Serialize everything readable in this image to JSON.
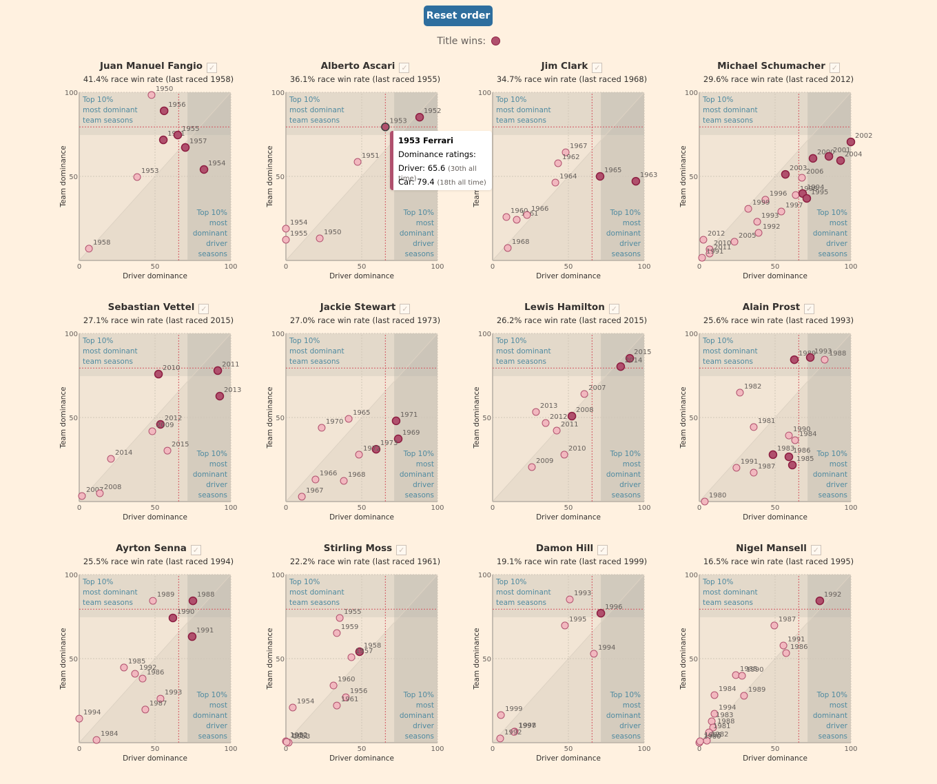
{
  "toolbar": {
    "reset_label": "Reset order"
  },
  "legend": {
    "title_wins_label": "Title wins:",
    "title_win_color": "#b0506d",
    "normal_color": "#f2b8bf"
  },
  "annotations": {
    "team_zone": [
      "Top 10%",
      "most dominant",
      "team seasons"
    ],
    "driver_zone": [
      "Top 10%",
      "most",
      "dominant",
      "driver",
      "seasons"
    ],
    "xlabel": "Driver dominance",
    "ylabel": "Team dominance",
    "ticks": [
      "0",
      "50",
      "100"
    ]
  },
  "tooltip": {
    "title": "1953 Ferrari",
    "subtitle": "Dominance ratings:",
    "driver_label": "Driver: 65.6",
    "driver_rank": "(30th all time)",
    "car_label": "Car: 79.4",
    "car_rank": "(18th all time)"
  },
  "chart_data": [
    {
      "type": "scatter",
      "title": "Juan Manuel Fangio",
      "subtitle": "41.4% race win rate (last raced 1958)",
      "xlabel": "Driver dominance",
      "ylabel": "Team dominance",
      "xlim": [
        0,
        100
      ],
      "ylim": [
        0,
        100
      ],
      "points": [
        {
          "year": "1950",
          "x": 47.7,
          "y": 98.4,
          "win": false
        },
        {
          "year": "1956",
          "x": 56,
          "y": 89,
          "win": true
        },
        {
          "year": "1951",
          "x": 55.5,
          "y": 71.7,
          "win": true
        },
        {
          "year": "1955",
          "x": 65,
          "y": 74.6,
          "win": true
        },
        {
          "year": "1957",
          "x": 70,
          "y": 67.2,
          "win": true
        },
        {
          "year": "1954",
          "x": 82.3,
          "y": 54.1,
          "win": true
        },
        {
          "year": "1953",
          "x": 38.2,
          "y": 49.6,
          "win": false
        },
        {
          "year": "1958",
          "x": 6.4,
          "y": 7,
          "win": false
        }
      ]
    },
    {
      "type": "scatter",
      "title": "Alberto Ascari",
      "subtitle": "36.1% race win rate (last raced 1955)",
      "xlabel": "Driver dominance",
      "ylabel": "Team dominance",
      "xlim": [
        0,
        100
      ],
      "ylim": [
        0,
        100
      ],
      "points": [
        {
          "year": "1952",
          "x": 88.2,
          "y": 85.2,
          "win": true
        },
        {
          "year": "1953",
          "x": 65.6,
          "y": 79.4,
          "win": true,
          "hover": true
        },
        {
          "year": "1951",
          "x": 47.3,
          "y": 58.6,
          "win": false
        },
        {
          "year": "1954",
          "x": 0,
          "y": 18.9,
          "win": false
        },
        {
          "year": "1955",
          "x": 0,
          "y": 12.3,
          "win": false
        },
        {
          "year": "1950",
          "x": 22.3,
          "y": 13.1,
          "win": false
        }
      ]
    },
    {
      "type": "scatter",
      "title": "Jim Clark",
      "subtitle": "34.7% race win rate (last raced 1968)",
      "xlabel": "Driver dominance",
      "ylabel": "Team dominance",
      "xlim": [
        0,
        100
      ],
      "ylim": [
        0,
        100
      ],
      "points": [
        {
          "year": "1967",
          "x": 48.2,
          "y": 64.3,
          "win": false
        },
        {
          "year": "1962",
          "x": 43.2,
          "y": 57.8,
          "win": false
        },
        {
          "year": "1964",
          "x": 41.4,
          "y": 46.3,
          "win": false
        },
        {
          "year": "1965",
          "x": 70.9,
          "y": 50,
          "win": true
        },
        {
          "year": "1963",
          "x": 94.5,
          "y": 47.1,
          "win": true
        },
        {
          "year": "1960",
          "x": 9.1,
          "y": 25.8,
          "win": false
        },
        {
          "year": "1961",
          "x": 15.9,
          "y": 24.2,
          "win": false
        },
        {
          "year": "1966",
          "x": 22.7,
          "y": 27,
          "win": false
        },
        {
          "year": "1968",
          "x": 10,
          "y": 7.4,
          "win": false
        }
      ]
    },
    {
      "type": "scatter",
      "title": "Michael Schumacher",
      "subtitle": "29.6% race win rate (last raced 2012)",
      "xlabel": "Driver dominance",
      "ylabel": "Team dominance",
      "xlim": [
        0,
        100
      ],
      "ylim": [
        0,
        100
      ],
      "points": [
        {
          "year": "2002",
          "x": 100,
          "y": 70.5,
          "win": true
        },
        {
          "year": "2000",
          "x": 75,
          "y": 60.7,
          "win": true
        },
        {
          "year": "2001",
          "x": 85.5,
          "y": 61.9,
          "win": true
        },
        {
          "year": "2004",
          "x": 93.2,
          "y": 59.4,
          "win": true
        },
        {
          "year": "2003",
          "x": 56.8,
          "y": 51.2,
          "win": true
        },
        {
          "year": "2006",
          "x": 67.7,
          "y": 49.2,
          "win": false
        },
        {
          "year": "1998",
          "x": 63.6,
          "y": 38.9,
          "win": false
        },
        {
          "year": "1994",
          "x": 68.2,
          "y": 39.8,
          "win": true
        },
        {
          "year": "1995",
          "x": 70.9,
          "y": 36.9,
          "win": true
        },
        {
          "year": "1996",
          "x": 43.6,
          "y": 36.1,
          "win": false
        },
        {
          "year": "1999",
          "x": 32.3,
          "y": 30.7,
          "win": false
        },
        {
          "year": "1997",
          "x": 54.1,
          "y": 29.1,
          "win": false
        },
        {
          "year": "1993",
          "x": 38.2,
          "y": 23,
          "win": false
        },
        {
          "year": "1992",
          "x": 39.1,
          "y": 16.4,
          "win": false
        },
        {
          "year": "2005",
          "x": 23.2,
          "y": 11.1,
          "win": false
        },
        {
          "year": "2012",
          "x": 2.7,
          "y": 12.3,
          "win": false
        },
        {
          "year": "2010",
          "x": 6.8,
          "y": 6.6,
          "win": false
        },
        {
          "year": "2011",
          "x": 6.8,
          "y": 4.1,
          "win": false
        },
        {
          "year": "1991",
          "x": 1.8,
          "y": 1.6,
          "win": false
        }
      ]
    },
    {
      "type": "scatter",
      "title": "Sebastian Vettel",
      "subtitle": "27.1% race win rate (last raced 2015)",
      "xlabel": "Driver dominance",
      "ylabel": "Team dominance",
      "xlim": [
        0,
        100
      ],
      "ylim": [
        0,
        100
      ],
      "points": [
        {
          "year": "2010",
          "x": 52.3,
          "y": 75.8,
          "win": true
        },
        {
          "year": "2011",
          "x": 91.4,
          "y": 77.9,
          "win": true
        },
        {
          "year": "2013",
          "x": 92.7,
          "y": 62.7,
          "win": true
        },
        {
          "year": "2012",
          "x": 53.6,
          "y": 45.9,
          "win": true
        },
        {
          "year": "2009",
          "x": 48.2,
          "y": 41.8,
          "win": false
        },
        {
          "year": "2015",
          "x": 58.2,
          "y": 30.3,
          "win": false
        },
        {
          "year": "2014",
          "x": 20.9,
          "y": 25.4,
          "win": false
        },
        {
          "year": "2007",
          "x": 1.8,
          "y": 3.3,
          "win": false
        },
        {
          "year": "2008",
          "x": 13.6,
          "y": 4.9,
          "win": false
        }
      ]
    },
    {
      "type": "scatter",
      "title": "Jackie Stewart",
      "subtitle": "27.0% race win rate (last raced 1973)",
      "xlabel": "Driver dominance",
      "ylabel": "Team dominance",
      "xlim": [
        0,
        100
      ],
      "ylim": [
        0,
        100
      ],
      "points": [
        {
          "year": "1965",
          "x": 41.4,
          "y": 49.2,
          "win": false
        },
        {
          "year": "1970",
          "x": 23.6,
          "y": 43.9,
          "win": false
        },
        {
          "year": "1971",
          "x": 72.7,
          "y": 48,
          "win": true
        },
        {
          "year": "1969",
          "x": 74.1,
          "y": 37.3,
          "win": true
        },
        {
          "year": "1973",
          "x": 59.5,
          "y": 31.1,
          "win": true
        },
        {
          "year": "1972",
          "x": 48.2,
          "y": 27.9,
          "win": false
        },
        {
          "year": "1966",
          "x": 19.5,
          "y": 13.1,
          "win": false
        },
        {
          "year": "1968",
          "x": 38.2,
          "y": 12.3,
          "win": false
        },
        {
          "year": "1967",
          "x": 10.5,
          "y": 2.9,
          "win": false
        }
      ]
    },
    {
      "type": "scatter",
      "title": "Lewis Hamilton",
      "subtitle": "26.2% race win rate (last raced 2015)",
      "xlabel": "Driver dominance",
      "ylabel": "Team dominance",
      "xlim": [
        0,
        100
      ],
      "ylim": [
        0,
        100
      ],
      "points": [
        {
          "year": "2015",
          "x": 90.5,
          "y": 85.2,
          "win": true
        },
        {
          "year": "2014",
          "x": 84.5,
          "y": 80.3,
          "win": true
        },
        {
          "year": "2007",
          "x": 60.5,
          "y": 64,
          "win": false
        },
        {
          "year": "2013",
          "x": 28.6,
          "y": 53.3,
          "win": false
        },
        {
          "year": "2008",
          "x": 52.3,
          "y": 50.8,
          "win": true
        },
        {
          "year": "2012",
          "x": 35,
          "y": 46.7,
          "win": false
        },
        {
          "year": "2011",
          "x": 42.3,
          "y": 42.2,
          "win": false
        },
        {
          "year": "2010",
          "x": 47.3,
          "y": 27.9,
          "win": false
        },
        {
          "year": "2009",
          "x": 25.9,
          "y": 20.5,
          "win": false
        }
      ]
    },
    {
      "type": "scatter",
      "title": "Alain Prost",
      "subtitle": "25.6% race win rate (last raced 1993)",
      "xlabel": "Driver dominance",
      "ylabel": "Team dominance",
      "xlim": [
        0,
        100
      ],
      "ylim": [
        0,
        100
      ],
      "points": [
        {
          "year": "1989",
          "x": 62.7,
          "y": 84.4,
          "win": true
        },
        {
          "year": "1993",
          "x": 73.2,
          "y": 85.7,
          "win": true
        },
        {
          "year": "1988",
          "x": 82.7,
          "y": 84.4,
          "win": false
        },
        {
          "year": "1982",
          "x": 26.8,
          "y": 64.8,
          "win": false
        },
        {
          "year": "1981",
          "x": 35.9,
          "y": 44.3,
          "win": false
        },
        {
          "year": "1990",
          "x": 59.1,
          "y": 39.3,
          "win": false
        },
        {
          "year": "1984",
          "x": 63.2,
          "y": 36.5,
          "win": false
        },
        {
          "year": "1983",
          "x": 48.6,
          "y": 27.9,
          "win": true
        },
        {
          "year": "1986",
          "x": 59.1,
          "y": 26.6,
          "win": true
        },
        {
          "year": "1985",
          "x": 61.4,
          "y": 21.7,
          "win": true
        },
        {
          "year": "1991",
          "x": 24.5,
          "y": 20.1,
          "win": false
        },
        {
          "year": "1987",
          "x": 35.9,
          "y": 17.2,
          "win": false
        },
        {
          "year": "1980",
          "x": 3.6,
          "y": 0,
          "win": false
        }
      ]
    },
    {
      "type": "scatter",
      "title": "Ayrton Senna",
      "subtitle": "25.5% race win rate (last raced 1994)",
      "xlabel": "Driver dominance",
      "ylabel": "Team dominance",
      "xlim": [
        0,
        100
      ],
      "ylim": [
        0,
        100
      ],
      "points": [
        {
          "year": "1989",
          "x": 48.6,
          "y": 84.4,
          "win": false
        },
        {
          "year": "1988",
          "x": 75,
          "y": 84.4,
          "win": true
        },
        {
          "year": "1990",
          "x": 61.8,
          "y": 74.2,
          "win": true
        },
        {
          "year": "1991",
          "x": 74.5,
          "y": 63.1,
          "win": true
        },
        {
          "year": "1985",
          "x": 29.5,
          "y": 44.7,
          "win": false
        },
        {
          "year": "1992",
          "x": 36.8,
          "y": 41,
          "win": false
        },
        {
          "year": "1986",
          "x": 41.8,
          "y": 38.1,
          "win": false
        },
        {
          "year": "1993",
          "x": 53.6,
          "y": 26.2,
          "win": false
        },
        {
          "year": "1987",
          "x": 43.6,
          "y": 19.7,
          "win": false
        },
        {
          "year": "1994",
          "x": 0,
          "y": 14.3,
          "win": false
        },
        {
          "year": "1984",
          "x": 11.4,
          "y": 1.6,
          "win": false
        }
      ]
    },
    {
      "type": "scatter",
      "title": "Stirling Moss",
      "subtitle": "22.2% race win rate (last raced 1961)",
      "xlabel": "Driver dominance",
      "ylabel": "Team dominance",
      "xlim": [
        0,
        100
      ],
      "ylim": [
        0,
        100
      ],
      "points": [
        {
          "year": "1955",
          "x": 35.5,
          "y": 74.2,
          "win": false
        },
        {
          "year": "1959",
          "x": 33.6,
          "y": 65.2,
          "win": false
        },
        {
          "year": "1958",
          "x": 48.6,
          "y": 54.1,
          "win": true
        },
        {
          "year": "1957",
          "x": 43.2,
          "y": 50.8,
          "win": false
        },
        {
          "year": "1960",
          "x": 31.4,
          "y": 34,
          "win": false
        },
        {
          "year": "1956",
          "x": 39.5,
          "y": 27,
          "win": false
        },
        {
          "year": "1961",
          "x": 33.6,
          "y": 22.1,
          "win": false
        },
        {
          "year": "1954",
          "x": 4.5,
          "y": 20.9,
          "win": false
        },
        {
          "year": "1952",
          "x": 0,
          "y": 0.8,
          "win": false
        },
        {
          "year": "1953",
          "x": 1.8,
          "y": 0,
          "win": false
        },
        {
          "year": "1951",
          "x": 0.5,
          "y": 0.4,
          "win": false
        }
      ]
    },
    {
      "type": "scatter",
      "title": "Damon Hill",
      "subtitle": "19.1% race win rate (last raced 1999)",
      "xlabel": "Driver dominance",
      "ylabel": "Team dominance",
      "xlim": [
        0,
        100
      ],
      "ylim": [
        0,
        100
      ],
      "points": [
        {
          "year": "1993",
          "x": 50.9,
          "y": 85.2,
          "win": false
        },
        {
          "year": "1996",
          "x": 71.4,
          "y": 77,
          "win": true
        },
        {
          "year": "1995",
          "x": 47.7,
          "y": 69.7,
          "win": false
        },
        {
          "year": "1994",
          "x": 66.8,
          "y": 52.9,
          "win": false
        },
        {
          "year": "1999",
          "x": 5.5,
          "y": 16.4,
          "win": false
        },
        {
          "year": "1998",
          "x": 14.5,
          "y": 6.6,
          "win": false
        },
        {
          "year": "1997",
          "x": 14.2,
          "y": 6.4,
          "win": false
        },
        {
          "year": "1992",
          "x": 5,
          "y": 2.5,
          "win": false
        }
      ]
    },
    {
      "type": "scatter",
      "title": "Nigel Mansell",
      "subtitle": "16.5% race win rate (last raced 1995)",
      "xlabel": "Driver dominance",
      "ylabel": "Team dominance",
      "xlim": [
        0,
        100
      ],
      "ylim": [
        0,
        100
      ],
      "points": [
        {
          "year": "1992",
          "x": 79.5,
          "y": 84.4,
          "win": true
        },
        {
          "year": "1987",
          "x": 49.5,
          "y": 69.7,
          "win": false
        },
        {
          "year": "1991",
          "x": 55.5,
          "y": 57.8,
          "win": false
        },
        {
          "year": "1986",
          "x": 57.3,
          "y": 53.3,
          "win": false
        },
        {
          "year": "1985",
          "x": 24.1,
          "y": 40.2,
          "win": false
        },
        {
          "year": "1990",
          "x": 28.2,
          "y": 39.8,
          "win": false
        },
        {
          "year": "1984",
          "x": 10,
          "y": 28.3,
          "win": false
        },
        {
          "year": "1989",
          "x": 29.5,
          "y": 27.9,
          "win": false
        },
        {
          "year": "1994",
          "x": 10,
          "y": 17.2,
          "win": false
        },
        {
          "year": "1983",
          "x": 8.2,
          "y": 12.7,
          "win": false
        },
        {
          "year": "1988",
          "x": 9.1,
          "y": 9,
          "win": false
        },
        {
          "year": "1981",
          "x": 6.4,
          "y": 6.1,
          "win": false
        },
        {
          "year": "1982",
          "x": 5,
          "y": 1.2,
          "win": false
        },
        {
          "year": "1980",
          "x": 0,
          "y": 0,
          "win": false
        },
        {
          "year": "1995",
          "x": 0.5,
          "y": 0.8,
          "win": false
        }
      ]
    }
  ],
  "reference": {
    "hover_driver": 65.6,
    "hover_team": 79.4,
    "top10_driver_threshold": 71.4,
    "top10_team_threshold": 74.6
  }
}
